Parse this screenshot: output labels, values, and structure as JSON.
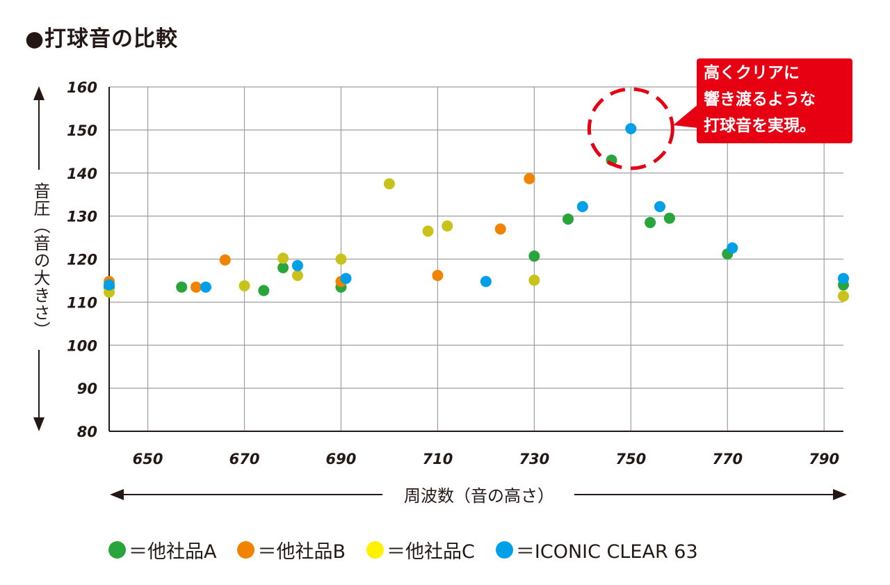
{
  "title": "●打球音の比較",
  "annotation": "高くクリアに\n響き渡るような\n打球音を実現。",
  "colors": {
    "grid": "#9e9e9e",
    "axis": "#231815",
    "callout": "#e60012",
    "A": "#2aa53b",
    "B": "#f08300",
    "C": "#c9c21a",
    "D": "#00a0e9"
  },
  "legend": [
    {
      "label": "＝他社品A",
      "color": "#2aa53b"
    },
    {
      "label": "＝他社品B",
      "color": "#f08300"
    },
    {
      "label": "＝他社品C",
      "color": "#fff100"
    },
    {
      "label": "＝ICONIC CLEAR 63",
      "color": "#00a0e9"
    }
  ],
  "chart_data": {
    "type": "scatter",
    "title": "●打球音の比較",
    "xlabel": "周波数（音の高さ）",
    "ylabel": "音圧（音の大きさ）",
    "xlim": [
      642,
      794
    ],
    "ylim": [
      80,
      160
    ],
    "x_ticks": [
      650,
      670,
      690,
      710,
      730,
      750,
      770,
      790
    ],
    "y_ticks": [
      80,
      90,
      100,
      110,
      120,
      130,
      140,
      150,
      160
    ],
    "grid": true,
    "legend_position": "bottom",
    "series": [
      {
        "name": "＝他社品A",
        "color": "#2aa53b",
        "points": [
          [
            642,
            113.5
          ],
          [
            657,
            113.5
          ],
          [
            674,
            112.7
          ],
          [
            678,
            118
          ],
          [
            690,
            113.5
          ],
          [
            730,
            120.7
          ],
          [
            737,
            129.3
          ],
          [
            746,
            143
          ],
          [
            754,
            128.5
          ],
          [
            758,
            129.5
          ],
          [
            770,
            121.2
          ],
          [
            794,
            114
          ]
        ]
      },
      {
        "name": "＝他社品B",
        "color": "#f08300",
        "points": [
          [
            642,
            114.8
          ],
          [
            660,
            113.5
          ],
          [
            666,
            119.8
          ],
          [
            690,
            114.8
          ],
          [
            710,
            116.2
          ],
          [
            723,
            127
          ],
          [
            729,
            138.7
          ]
        ]
      },
      {
        "name": "＝他社品C",
        "color": "#c9c21a",
        "points": [
          [
            642,
            112.3
          ],
          [
            670,
            113.8
          ],
          [
            678,
            120.2
          ],
          [
            681,
            116.2
          ],
          [
            690,
            120
          ],
          [
            700,
            137.5
          ],
          [
            708,
            126.5
          ],
          [
            712,
            127.7
          ],
          [
            730,
            115.1
          ],
          [
            794,
            111.4
          ]
        ]
      },
      {
        "name": "＝ICONIC CLEAR 63",
        "color": "#00a0e9",
        "points": [
          [
            642,
            114
          ],
          [
            662,
            113.5
          ],
          [
            681,
            118.5
          ],
          [
            691,
            115.5
          ],
          [
            720,
            114.8
          ],
          [
            740,
            132.2
          ],
          [
            750,
            150.3
          ],
          [
            756,
            132.2
          ],
          [
            771,
            122.6
          ],
          [
            794,
            115.5
          ]
        ]
      }
    ],
    "highlight": {
      "x": 750,
      "y": 150.3
    }
  }
}
